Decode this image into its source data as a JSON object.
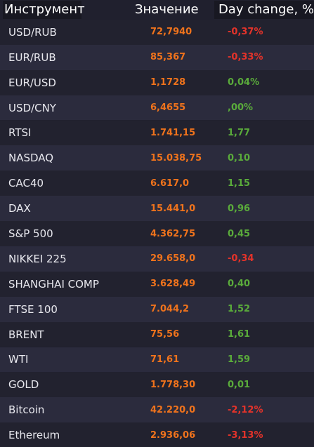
{
  "header": {
    "instrument": "Инструмент",
    "value": "Значение",
    "change": "Day change, %"
  },
  "colors": {
    "value": "#f0731c",
    "negative": "#e5332a",
    "positive": "#5aab3b",
    "background": "#20202e",
    "row_alt": "#2b2b3d"
  },
  "rows": [
    {
      "instrument": "USD/RUB",
      "value": "72,7940",
      "change": "-0,37%",
      "direction": "neg"
    },
    {
      "instrument": "EUR/RUB",
      "value": "85,367",
      "change": "-0,33%",
      "direction": "neg"
    },
    {
      "instrument": "EUR/USD",
      "value": "1,1728",
      "change": "0,04%",
      "direction": "pos"
    },
    {
      "instrument": "USD/CNY",
      "value": "6,4655",
      "change": ",00%",
      "direction": "pos"
    },
    {
      "instrument": "RTSI",
      "value": "1.741,15",
      "change": "1,77",
      "direction": "pos"
    },
    {
      "instrument": "NASDAQ",
      "value": "15.038,75",
      "change": "0,10",
      "direction": "pos"
    },
    {
      "instrument": "CAC40",
      "value": "6.617,0",
      "change": "1,15",
      "direction": "pos"
    },
    {
      "instrument": "DAX",
      "value": "15.441,0",
      "change": "0,96",
      "direction": "pos"
    },
    {
      "instrument": "S&P 500",
      "value": "4.362,75",
      "change": "0,45",
      "direction": "pos"
    },
    {
      "instrument": "NIKKEI 225",
      "value": "29.658,0",
      "change": "-0,34",
      "direction": "neg"
    },
    {
      "instrument": "SHANGHAI COMP",
      "value": "3.628,49",
      "change": "0,40",
      "direction": "pos"
    },
    {
      "instrument": "FTSE 100",
      "value": "7.044,2",
      "change": "1,52",
      "direction": "pos"
    },
    {
      "instrument": "BRENT",
      "value": "75,56",
      "change": "1,61",
      "direction": "pos"
    },
    {
      "instrument": "WTI",
      "value": "71,61",
      "change": "1,59",
      "direction": "pos"
    },
    {
      "instrument": "GOLD",
      "value": "1.778,30",
      "change": "0,01",
      "direction": "pos"
    },
    {
      "instrument": "Bitcoin",
      "value": "42.220,0",
      "change": "-2,12%",
      "direction": "neg"
    },
    {
      "instrument": "Ethereum",
      "value": "2.936,06",
      "change": "-3,13%",
      "direction": "neg"
    }
  ]
}
